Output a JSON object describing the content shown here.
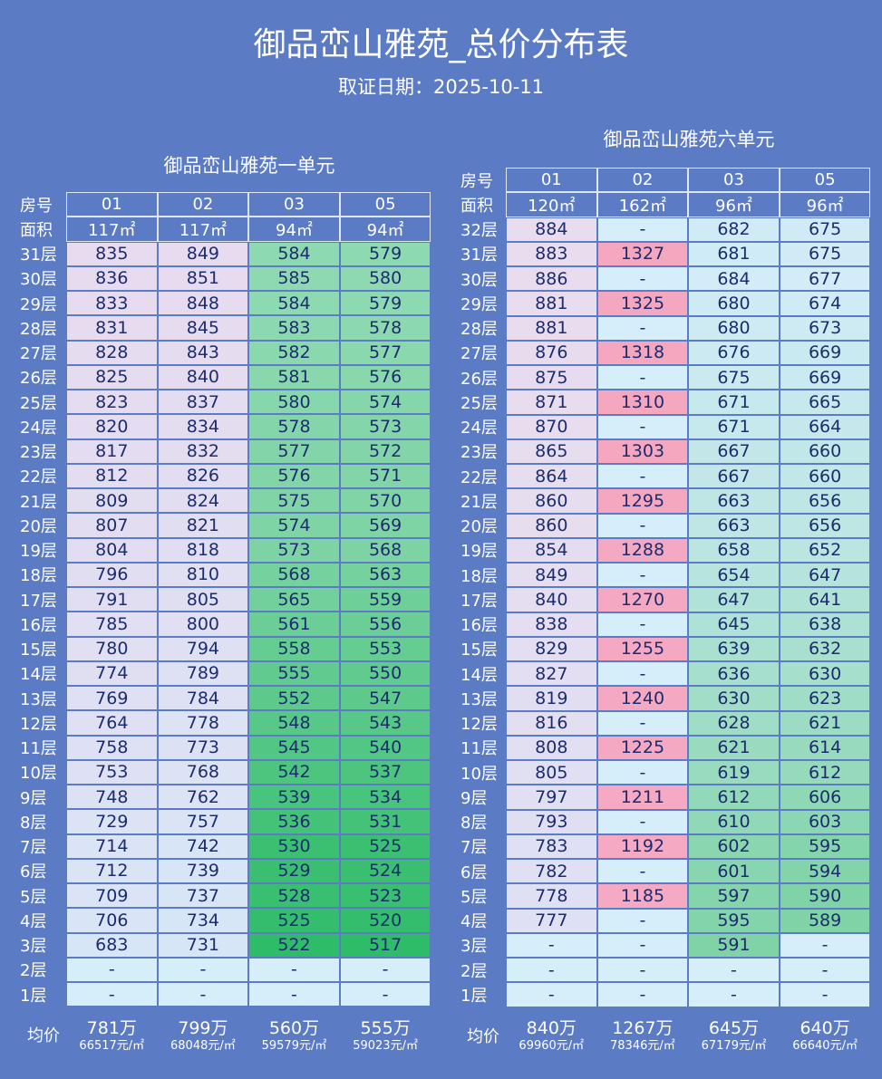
{
  "header": {
    "title": "御品峦山雅苑_总价分布表",
    "date": "取证日期：2025-10-11"
  },
  "tables": [
    {
      "title": "御品峦山雅苑一单元",
      "room_label": "房号",
      "area_label": "面积",
      "avg_label": "均价",
      "columns": [
        {
          "room": "01",
          "area": "117㎡"
        },
        {
          "room": "02",
          "area": "117㎡"
        },
        {
          "room": "03",
          "area": "94㎡"
        },
        {
          "room": "05",
          "area": "94㎡"
        }
      ],
      "rows": [
        {
          "floor": "31层",
          "cells": [
            835,
            849,
            584,
            579
          ]
        },
        {
          "floor": "30层",
          "cells": [
            836,
            851,
            585,
            580
          ]
        },
        {
          "floor": "29层",
          "cells": [
            833,
            848,
            584,
            579
          ]
        },
        {
          "floor": "28层",
          "cells": [
            831,
            845,
            583,
            578
          ]
        },
        {
          "floor": "27层",
          "cells": [
            828,
            843,
            582,
            577
          ]
        },
        {
          "floor": "26层",
          "cells": [
            825,
            840,
            581,
            576
          ]
        },
        {
          "floor": "25层",
          "cells": [
            823,
            837,
            580,
            574
          ]
        },
        {
          "floor": "24层",
          "cells": [
            820,
            834,
            578,
            573
          ]
        },
        {
          "floor": "23层",
          "cells": [
            817,
            832,
            577,
            572
          ]
        },
        {
          "floor": "22层",
          "cells": [
            812,
            826,
            576,
            571
          ]
        },
        {
          "floor": "21层",
          "cells": [
            809,
            824,
            575,
            570
          ]
        },
        {
          "floor": "20层",
          "cells": [
            807,
            821,
            574,
            569
          ]
        },
        {
          "floor": "19层",
          "cells": [
            804,
            818,
            573,
            568
          ]
        },
        {
          "floor": "18层",
          "cells": [
            796,
            810,
            568,
            563
          ]
        },
        {
          "floor": "17层",
          "cells": [
            791,
            805,
            565,
            559
          ]
        },
        {
          "floor": "16层",
          "cells": [
            785,
            800,
            561,
            556
          ]
        },
        {
          "floor": "15层",
          "cells": [
            780,
            794,
            558,
            553
          ]
        },
        {
          "floor": "14层",
          "cells": [
            774,
            789,
            555,
            550
          ]
        },
        {
          "floor": "13层",
          "cells": [
            769,
            784,
            552,
            547
          ]
        },
        {
          "floor": "12层",
          "cells": [
            764,
            778,
            548,
            543
          ]
        },
        {
          "floor": "11层",
          "cells": [
            758,
            773,
            545,
            540
          ]
        },
        {
          "floor": "10层",
          "cells": [
            753,
            768,
            542,
            537
          ]
        },
        {
          "floor": "9层",
          "cells": [
            748,
            762,
            539,
            534
          ]
        },
        {
          "floor": "8层",
          "cells": [
            729,
            757,
            536,
            531
          ]
        },
        {
          "floor": "7层",
          "cells": [
            714,
            742,
            530,
            525
          ]
        },
        {
          "floor": "6层",
          "cells": [
            712,
            739,
            529,
            524
          ]
        },
        {
          "floor": "5层",
          "cells": [
            709,
            737,
            528,
            523
          ]
        },
        {
          "floor": "4层",
          "cells": [
            706,
            734,
            525,
            520
          ]
        },
        {
          "floor": "3层",
          "cells": [
            683,
            731,
            522,
            517
          ]
        },
        {
          "floor": "2层",
          "cells": [
            "-",
            "-",
            "-",
            "-"
          ]
        },
        {
          "floor": "1层",
          "cells": [
            "-",
            "-",
            "-",
            "-"
          ]
        }
      ],
      "averages": [
        {
          "total": "781万",
          "unit": "66517元/㎡"
        },
        {
          "total": "799万",
          "unit": "68048元/㎡"
        },
        {
          "total": "560万",
          "unit": "59579元/㎡"
        },
        {
          "total": "555万",
          "unit": "59023元/㎡"
        }
      ]
    },
    {
      "title": "御品峦山雅苑六单元",
      "room_label": "房号",
      "area_label": "面积",
      "avg_label": "均价",
      "columns": [
        {
          "room": "01",
          "area": "120㎡"
        },
        {
          "room": "02",
          "area": "162㎡"
        },
        {
          "room": "03",
          "area": "96㎡"
        },
        {
          "room": "05",
          "area": "96㎡"
        }
      ],
      "rows": [
        {
          "floor": "32层",
          "cells": [
            884,
            "-",
            682,
            675
          ]
        },
        {
          "floor": "31层",
          "cells": [
            883,
            1327,
            681,
            675
          ]
        },
        {
          "floor": "30层",
          "cells": [
            886,
            "-",
            684,
            677
          ]
        },
        {
          "floor": "29层",
          "cells": [
            881,
            1325,
            680,
            674
          ]
        },
        {
          "floor": "28层",
          "cells": [
            881,
            "-",
            680,
            673
          ]
        },
        {
          "floor": "27层",
          "cells": [
            876,
            1318,
            676,
            669
          ]
        },
        {
          "floor": "26层",
          "cells": [
            875,
            "-",
            675,
            669
          ]
        },
        {
          "floor": "25层",
          "cells": [
            871,
            1310,
            671,
            665
          ]
        },
        {
          "floor": "24层",
          "cells": [
            870,
            "-",
            671,
            664
          ]
        },
        {
          "floor": "23层",
          "cells": [
            865,
            1303,
            667,
            660
          ]
        },
        {
          "floor": "22层",
          "cells": [
            864,
            "-",
            667,
            660
          ]
        },
        {
          "floor": "21层",
          "cells": [
            860,
            1295,
            663,
            656
          ]
        },
        {
          "floor": "20层",
          "cells": [
            860,
            "-",
            663,
            656
          ]
        },
        {
          "floor": "19层",
          "cells": [
            854,
            1288,
            658,
            652
          ]
        },
        {
          "floor": "18层",
          "cells": [
            849,
            "-",
            654,
            647
          ]
        },
        {
          "floor": "17层",
          "cells": [
            840,
            1270,
            647,
            641
          ]
        },
        {
          "floor": "16层",
          "cells": [
            838,
            "-",
            645,
            638
          ]
        },
        {
          "floor": "15层",
          "cells": [
            829,
            1255,
            639,
            632
          ]
        },
        {
          "floor": "14层",
          "cells": [
            827,
            "-",
            636,
            630
          ]
        },
        {
          "floor": "13层",
          "cells": [
            819,
            1240,
            630,
            623
          ]
        },
        {
          "floor": "12层",
          "cells": [
            816,
            "-",
            628,
            621
          ]
        },
        {
          "floor": "11层",
          "cells": [
            808,
            1225,
            621,
            614
          ]
        },
        {
          "floor": "10层",
          "cells": [
            805,
            "-",
            619,
            612
          ]
        },
        {
          "floor": "9层",
          "cells": [
            797,
            1211,
            612,
            606
          ]
        },
        {
          "floor": "8层",
          "cells": [
            793,
            "-",
            610,
            603
          ]
        },
        {
          "floor": "7层",
          "cells": [
            783,
            1192,
            602,
            595
          ]
        },
        {
          "floor": "6层",
          "cells": [
            782,
            "-",
            601,
            594
          ]
        },
        {
          "floor": "5层",
          "cells": [
            778,
            1185,
            597,
            590
          ]
        },
        {
          "floor": "4层",
          "cells": [
            777,
            "-",
            595,
            589
          ]
        },
        {
          "floor": "3层",
          "cells": [
            "-",
            "-",
            591,
            "-"
          ]
        },
        {
          "floor": "2层",
          "cells": [
            "-",
            "-",
            "-",
            "-"
          ]
        },
        {
          "floor": "1层",
          "cells": [
            "-",
            "-",
            "-",
            "-"
          ]
        }
      ],
      "averages": [
        {
          "total": "840万",
          "unit": "69960元/㎡"
        },
        {
          "total": "1267万",
          "unit": "78346元/㎡"
        },
        {
          "total": "645万",
          "unit": "67179元/㎡"
        },
        {
          "total": "640万",
          "unit": "66640元/㎡"
        }
      ]
    }
  ]
}
